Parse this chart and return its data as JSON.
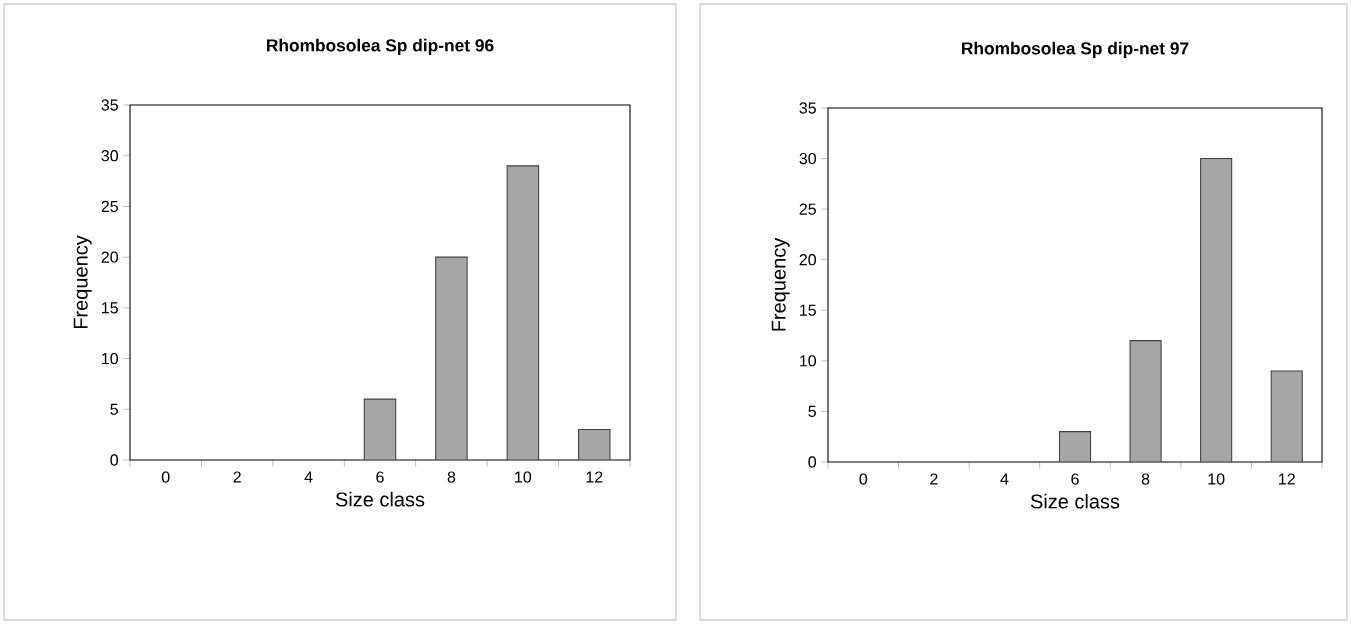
{
  "chart_data": [
    {
      "type": "bar",
      "title": "Rhombosolea Sp dip-net 96",
      "xlabel": "Size class",
      "ylabel": "Frequency",
      "categories": [
        "0",
        "2",
        "4",
        "6",
        "8",
        "10",
        "12"
      ],
      "values": [
        0,
        0,
        0,
        6,
        20,
        29,
        3
      ],
      "color": "#a6a6a6",
      "ylim": [
        0,
        35
      ],
      "yticks": [
        0,
        5,
        10,
        15,
        20,
        25,
        30,
        35
      ],
      "grid": false
    },
    {
      "type": "bar",
      "title": "Rhombosolea Sp dip-net 97",
      "xlabel": "Size class",
      "ylabel": "Frequency",
      "categories": [
        "0",
        "2",
        "4",
        "6",
        "8",
        "10",
        "12"
      ],
      "values": [
        0,
        0,
        0,
        3,
        12,
        30,
        9
      ],
      "color": "#a6a6a6",
      "ylim": [
        0,
        35
      ],
      "yticks": [
        0,
        5,
        10,
        15,
        20,
        25,
        30,
        35
      ],
      "grid": false
    }
  ]
}
